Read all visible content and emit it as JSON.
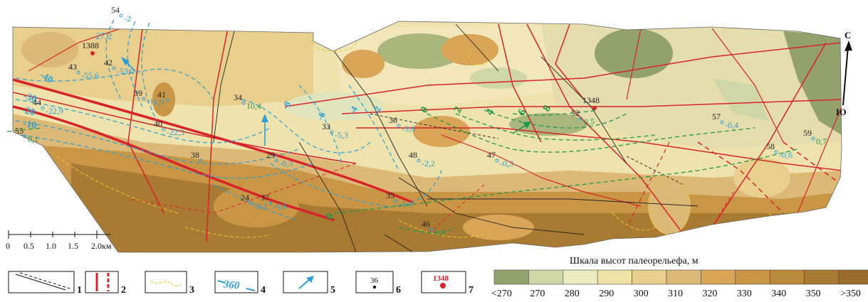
{
  "compass": {
    "north": "С",
    "south": "Ю"
  },
  "scale_bar": {
    "ticks": [
      "0",
      "0.5",
      "1.0",
      "1.5",
      "2.0км"
    ]
  },
  "relief_scale": {
    "title": "Шкала высот палеорельефа, м",
    "classes": [
      {
        "label": "<270",
        "color": "#93a26b"
      },
      {
        "label": "270",
        "color": "#cfd7a6"
      },
      {
        "label": "280",
        "color": "#ecebbf"
      },
      {
        "label": "290",
        "color": "#f1e3a6"
      },
      {
        "label": "300",
        "color": "#e8cf8d"
      },
      {
        "label": "310",
        "color": "#ddb977"
      },
      {
        "label": "320",
        "color": "#d9a556"
      },
      {
        "label": "330",
        "color": "#c99645"
      },
      {
        "label": "340",
        "color": "#b98a3c"
      },
      {
        "label": "350",
        "color": "#a97a32"
      },
      {
        "label": ">350",
        "color": "#9a6c2a"
      }
    ]
  },
  "legend": [
    {
      "num": "1",
      "symbol": "faults-black"
    },
    {
      "num": "2",
      "symbol": "faults-red"
    },
    {
      "num": "3",
      "symbol": "yellow-dash"
    },
    {
      "num": "4",
      "symbol": "isoline",
      "text": "360"
    },
    {
      "num": "5",
      "symbol": "arrow"
    },
    {
      "num": "6",
      "symbol": "well",
      "text": "36"
    },
    {
      "num": "7",
      "symbol": "red-well",
      "text": "1348"
    }
  ],
  "wells": [
    {
      "id": "54",
      "value": "-2"
    },
    {
      "id": "43",
      "value": "-55,6"
    },
    {
      "id": "42",
      "value": "-53,0"
    },
    {
      "id": "39",
      "value": "-11,9"
    },
    {
      "id": "41",
      "value": ""
    },
    {
      "id": "44",
      "value": "-22,9"
    },
    {
      "id": "55",
      "value": "0,1"
    },
    {
      "id": "40",
      "value": "-22,3"
    },
    {
      "id": "34",
      "value": "10,4"
    },
    {
      "id": "33",
      "value": "-5,3"
    },
    {
      "id": "36",
      "value": "-3,6"
    },
    {
      "id": "38",
      "value": ""
    },
    {
      "id": "29",
      "value": "-0,3"
    },
    {
      "id": "24",
      "value": "-0,2"
    },
    {
      "id": "37",
      "value": "-6,6"
    },
    {
      "id": "48",
      "value": "-2,2"
    },
    {
      "id": "47",
      "value": "-0,3"
    },
    {
      "id": "35",
      "value": "-1,4"
    },
    {
      "id": "46",
      "value": "0,6"
    },
    {
      "id": "52",
      "value": "0,5"
    },
    {
      "id": "57",
      "value": "-0,4"
    },
    {
      "id": "58",
      "value": "-0,6"
    },
    {
      "id": "59",
      "value": "0,7"
    }
  ],
  "red_wells": [
    "1388",
    "1348"
  ],
  "blue_isolines": [
    "-27,2",
    "-40",
    "-30",
    "-20",
    "-10",
    "-8",
    "-6",
    "-4",
    "-2"
  ],
  "green_isolines": [
    "0",
    "2",
    "4",
    "6",
    "8",
    "0"
  ]
}
